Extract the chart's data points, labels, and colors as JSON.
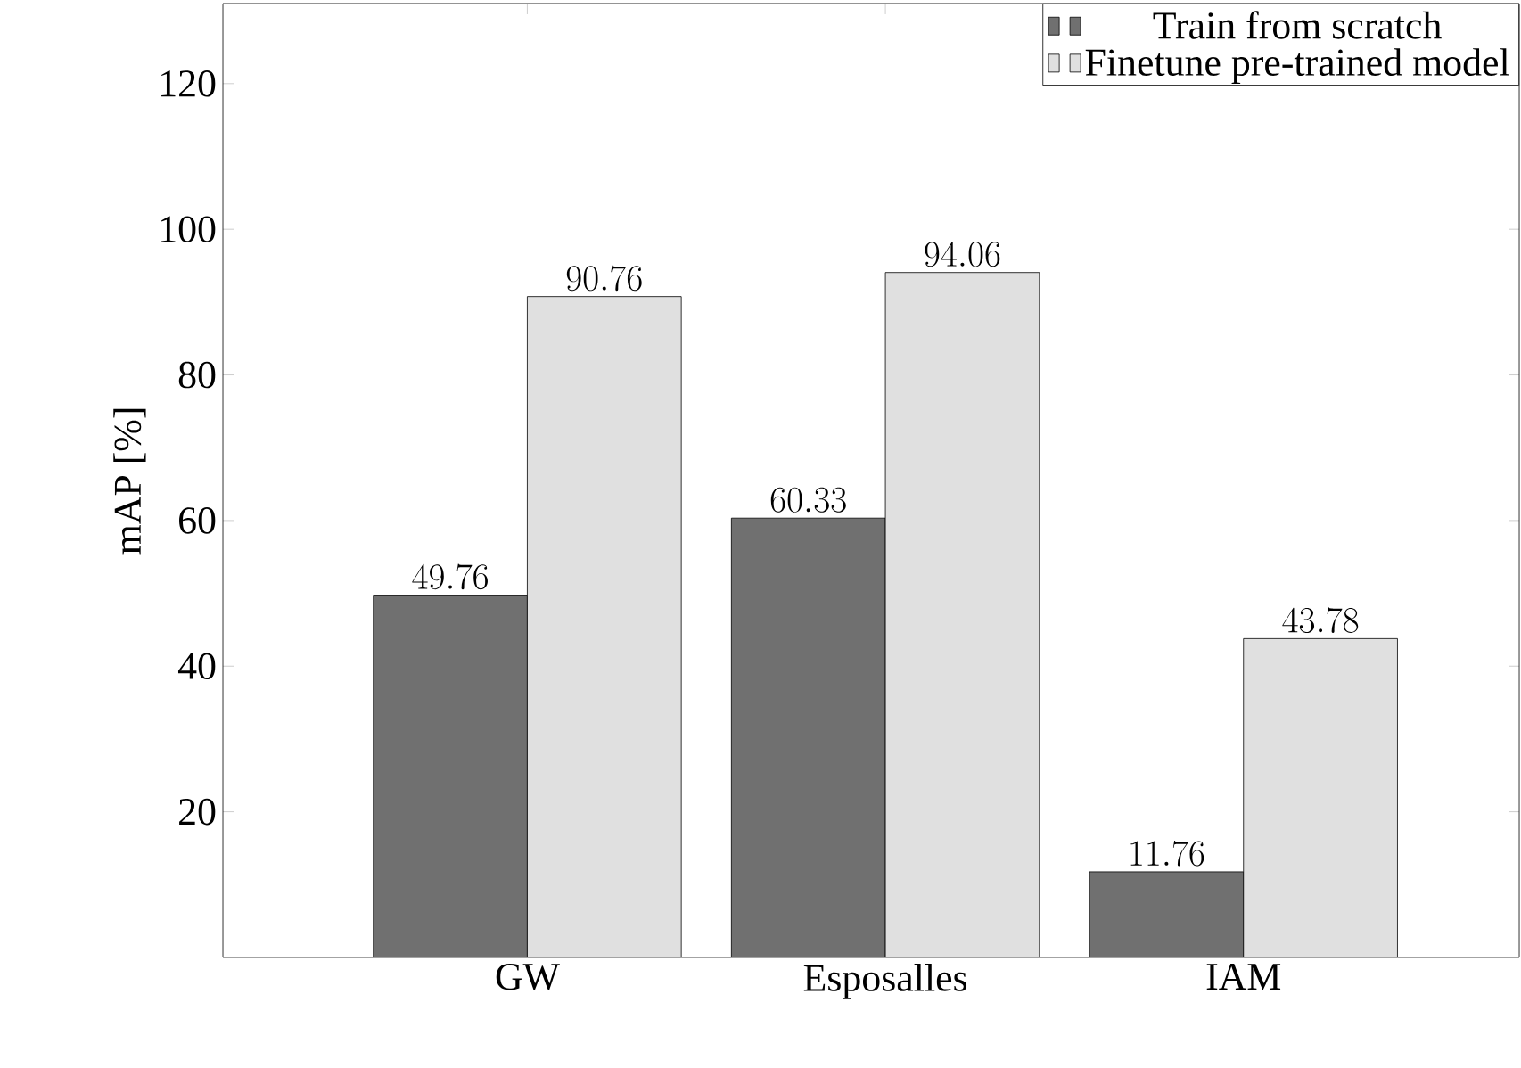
{
  "chart_data": {
    "type": "bar",
    "ylabel": "mAP [%]",
    "categories": [
      "GW",
      "Esposalles",
      "IAM"
    ],
    "series": [
      {
        "name": "Train from scratch",
        "color": "#707070",
        "values": [
          49.76,
          60.33,
          11.76
        ]
      },
      {
        "name": "Finetune pre-trained model",
        "color": "#e0e0e0",
        "values": [
          90.76,
          94.06,
          43.78
        ]
      }
    ],
    "ylim": [
      0,
      131
    ],
    "yticks": [
      20,
      40,
      60,
      80,
      100,
      120
    ],
    "data_labels": true,
    "legend": "top right",
    "grid": false
  }
}
